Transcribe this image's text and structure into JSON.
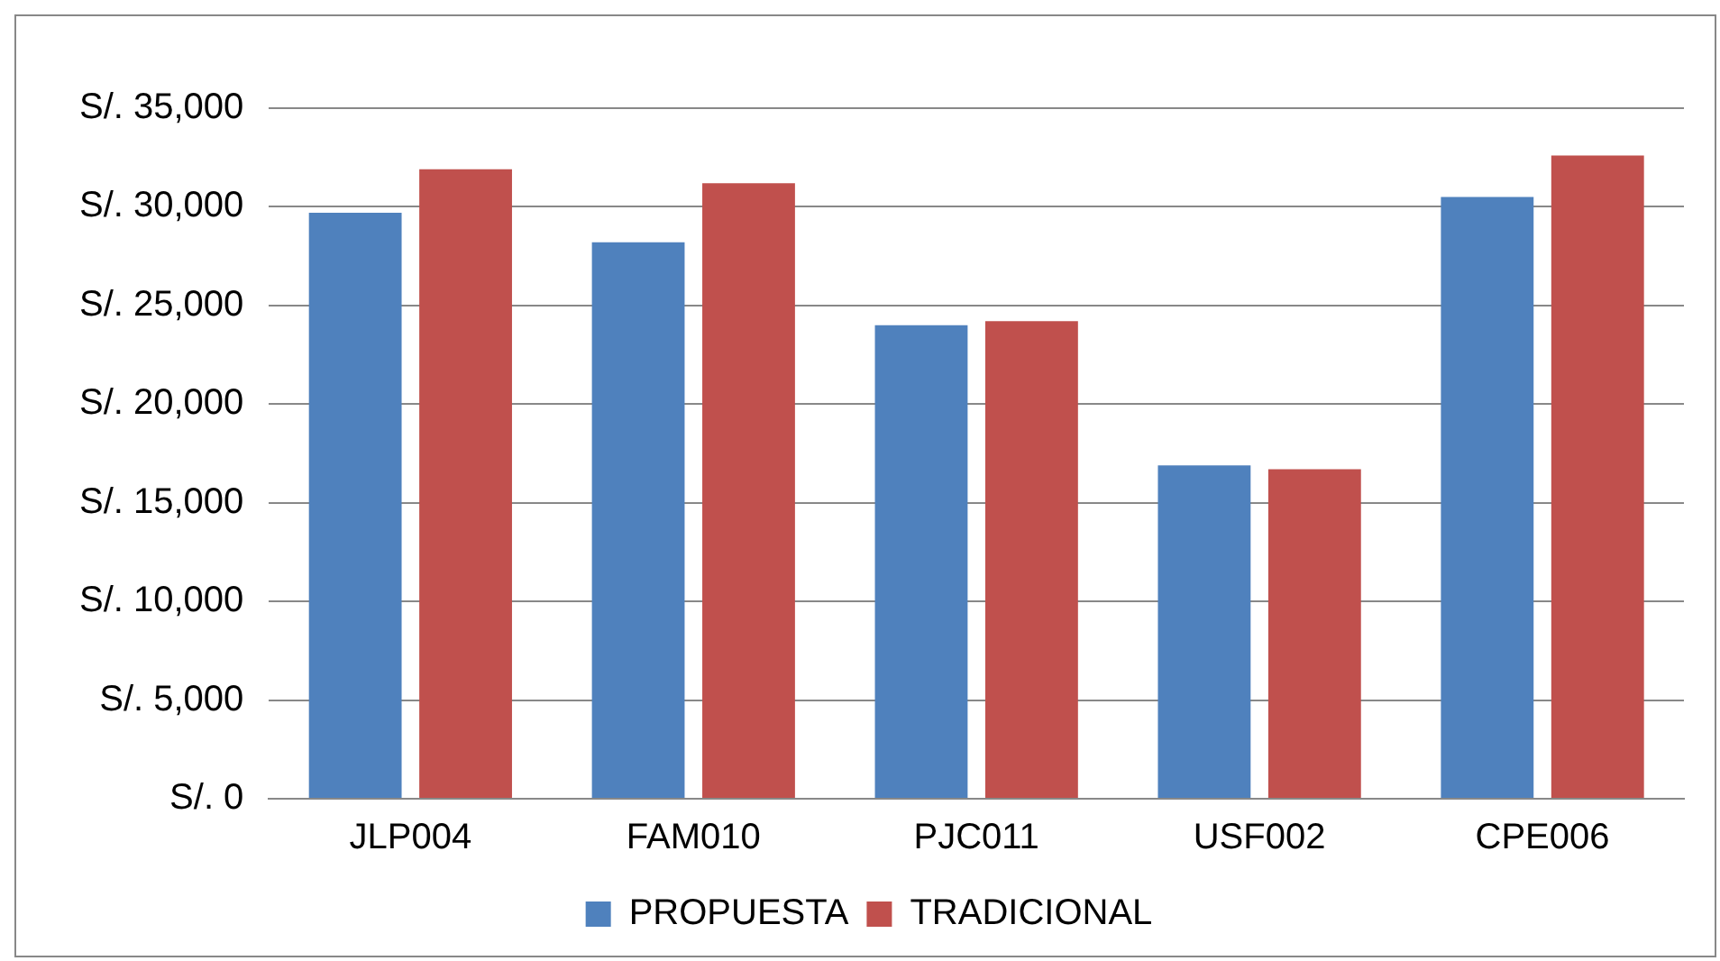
{
  "chart_data": {
    "type": "bar",
    "categories": [
      "JLP004",
      "FAM010",
      "PJC011",
      "USF002",
      "CPE006"
    ],
    "series": [
      {
        "name": "PROPUESTA",
        "color": "#4f81bd",
        "values": [
          29700,
          28200,
          24000,
          16900,
          30500
        ]
      },
      {
        "name": "TRADICIONAL",
        "color": "#c0504d",
        "values": [
          31900,
          31200,
          24200,
          16700,
          32600
        ]
      }
    ],
    "ylim": [
      0,
      35000
    ],
    "yticks": [
      {
        "value": 0,
        "label": "S/. 0"
      },
      {
        "value": 5000,
        "label": "S/. 5,000"
      },
      {
        "value": 10000,
        "label": "S/. 10,000"
      },
      {
        "value": 15000,
        "label": "S/. 15,000"
      },
      {
        "value": 20000,
        "label": "S/. 20,000"
      },
      {
        "value": 25000,
        "label": "S/. 25,000"
      },
      {
        "value": 30000,
        "label": "S/. 30,000"
      },
      {
        "value": 35000,
        "label": "S/. 35,000"
      }
    ],
    "grid": "y",
    "legend": "bottom"
  }
}
